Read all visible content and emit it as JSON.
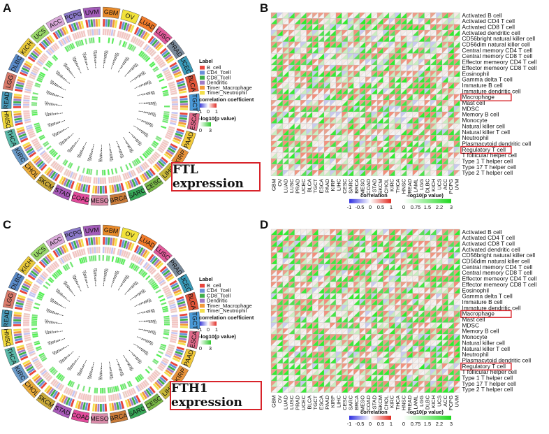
{
  "panels": {
    "A": {
      "letter": "A",
      "expression_label": "FTL expression"
    },
    "B": {
      "letter": "B"
    },
    "C": {
      "letter": "C",
      "expression_label": "FTH1 expression"
    },
    "D": {
      "letter": "D"
    }
  },
  "circos_legend": {
    "label_title": "Label",
    "labels": [
      {
        "name": "B_cell",
        "color": "#e8453c"
      },
      {
        "name": "CD4_Tcell",
        "color": "#6a8fd8"
      },
      {
        "name": "CD8_Tcell",
        "color": "#3fae49"
      },
      {
        "name": "Dendritic",
        "color": "#a07cc5"
      },
      {
        "name": "Timer_Macrophage",
        "color": "#f29a3a"
      },
      {
        "name": "Timer_Neutrophil",
        "color": "#f4e04d"
      }
    ],
    "corr_title": "correlation coefficient",
    "corr_ticks": [
      "-1",
      "0",
      "1"
    ],
    "p_title": "-log10(p value)",
    "p_ticks": [
      "0",
      "3"
    ]
  },
  "heatmap_legend": {
    "corr_title": "correlation",
    "corr_ticks": [
      "-1",
      "-0.5",
      "0",
      "0.5",
      "1"
    ],
    "p_title": "-log10(p value)",
    "p_ticks": [
      "0",
      "0.75",
      "1.5",
      "2.2",
      "3"
    ]
  },
  "highlighted_cells": [
    "Macrophage",
    "Regulatory T cell"
  ],
  "chart_data": [
    {
      "type": "heatmap",
      "panel": "A",
      "title": "",
      "ring_categories": [
        "UVM",
        "GBM",
        "OV",
        "LUAD",
        "LUSC",
        "PRAD",
        "UCEC",
        "BLCA",
        "TGCT",
        "ESCA",
        "PAAD",
        "KIRP",
        "LIHC",
        "CESC",
        "SARC",
        "BRCA",
        "MESO",
        "COAD",
        "STAD",
        "SKCM",
        "CHOL",
        "KIRC",
        "THCA",
        "HNSC",
        "READ",
        "LGG",
        "DLBC",
        "KICH",
        "UCS",
        "ACC",
        "PCPG"
      ],
      "ring_colors": [
        "#a25bb8",
        "#e88a2a",
        "#f2e23a",
        "#f07a2a",
        "#e05a9a",
        "#7a8a9a",
        "#3a9ab8",
        "#e0553a",
        "#4a9ad8",
        "#e06a8a",
        "#f0c83a",
        "#e8923a",
        "#c8b83a",
        "#7ab848",
        "#38a858",
        "#c87a38",
        "#d88aa8",
        "#e04a9a",
        "#a85ab8",
        "#c8a838",
        "#e8aa3a",
        "#6a9ac8",
        "#5ab8a8",
        "#f0d83a",
        "#4a9ab8",
        "#d87a6a",
        "#5a8ac8",
        "#e8c83a",
        "#9ad86a",
        "#d8a8d8",
        "#8a78c8"
      ],
      "series": [
        "B_cell",
        "CD4_Tcell",
        "CD8_Tcell",
        "Dendritic",
        "Timer_Macrophage",
        "Timer_Neutrophil"
      ]
    },
    {
      "type": "heatmap",
      "panel": "B",
      "title": "",
      "x_categories": [
        "GBM",
        "OV",
        "LUAD",
        "LUSC",
        "PRAD",
        "UCEC",
        "BLCA",
        "TGCT",
        "ESCA",
        "PAAD",
        "KIRP",
        "LIHC",
        "CESC",
        "SARC",
        "BRCA",
        "MESO",
        "COAD",
        "STAD",
        "SKCM",
        "CHOL",
        "KIRC",
        "THCA",
        "HNSC",
        "READ",
        "LAML",
        "LGG",
        "DLBC",
        "KICH",
        "UCS",
        "ACC",
        "PCPG",
        "UVM"
      ],
      "y_categories": [
        "Activated B cell",
        "Activated CD4 T cell",
        "Activated CD8 T cell",
        "Activated dendritic cell",
        "CD56bright natural killer cell",
        "CD56dim natural killer cell",
        "Central memory CD4 T cell",
        "Central memory CD8 T cell",
        "Effector memeory CD4 T cell",
        "Effector memeory CD8 T cell",
        "Eosinophil",
        "Gamma delta T cell",
        "Immature  B cell",
        "Immature dendritic cell",
        "Macrophage",
        "Mast cell",
        "MDSC",
        "Memory B cell",
        "Monocyte",
        "Natural killer cell",
        "Natural killer T cell",
        "Neutrophil",
        "Plasmacytoid dendritic cell",
        "Regulatory T cell",
        "T follicular helper cell",
        "Type 1 T helper cell",
        "Type 17 T helper cell",
        "Type 2 T helper cell"
      ]
    },
    {
      "type": "heatmap",
      "panel": "C",
      "title": "",
      "ring_categories": [
        "UVM",
        "GBM",
        "OV",
        "LUAD",
        "LUSC",
        "PRAD",
        "UCEC",
        "BLCA",
        "TGCT",
        "ESCA",
        "PAAD",
        "KIRP",
        "LIHC",
        "CESC",
        "SARC",
        "BRCA",
        "MESO",
        "COAD",
        "STAD",
        "SKCM",
        "CHOL",
        "KIRC",
        "THCA",
        "HNSC",
        "READ",
        "LGG",
        "DLBC",
        "KICH",
        "UCS",
        "ACC",
        "PCPG"
      ],
      "series": [
        "B_cell",
        "CD4_Tcell",
        "CD8_Tcell",
        "Dendritic",
        "Timer_Macrophage",
        "Timer_Neutrophil"
      ]
    },
    {
      "type": "heatmap",
      "panel": "D",
      "title": "",
      "x_categories": [
        "GBM",
        "OV",
        "LUAD",
        "LUSC",
        "PRAD",
        "UCEC",
        "BLCA",
        "TGCT",
        "ESCA",
        "PAAD",
        "KIRP",
        "LIHC",
        "CESC",
        "SARC",
        "BRCA",
        "MESO",
        "COAD",
        "STAD",
        "SKCM",
        "CHOL",
        "KIRC",
        "THCA",
        "HNSC",
        "READ",
        "LAML",
        "LGG",
        "DLBC",
        "KICH",
        "UCS",
        "ACC",
        "PCPG",
        "UVM"
      ],
      "y_categories": [
        "Activated B cell",
        "Activated CD4 T cell",
        "Activated CD8 T cell",
        "Activated dendritic cell",
        "CD56bright natural killer cell",
        "CD56dim natural killer cell",
        "Central memory CD4 T cell",
        "Central memory CD8 T cell",
        "Effector memeory CD4 T cell",
        "Effector memeory CD8 T cell",
        "Eosinophil",
        "Gamma delta T cell",
        "Immature  B cell",
        "Immature dendritic cell",
        "Macrophage",
        "Mast cell",
        "MDSC",
        "Memory B cell",
        "Monocyte",
        "Natural killer cell",
        "Natural killer T cell",
        "Neutrophil",
        "Plasmacytoid dendritic cell",
        "Regulatory T cell",
        "T follicular helper cell",
        "Type 1 T helper cell",
        "Type 17 T helper cell",
        "Type 2 T helper cell"
      ]
    }
  ]
}
